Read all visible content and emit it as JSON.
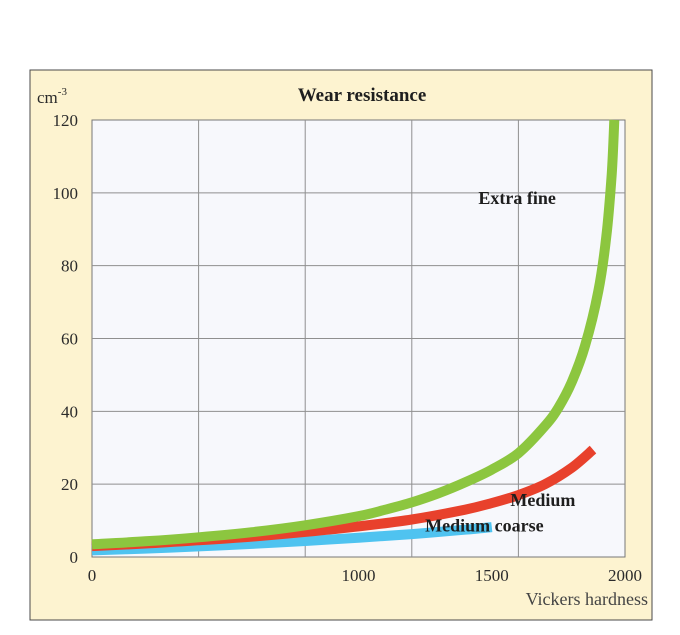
{
  "chart_data": {
    "type": "line",
    "title": "Wear resistance",
    "ylabel": "cm",
    "ylabel_superscript": "-3",
    "xlabel": "Vickers hardness",
    "xlim": [
      0,
      2000
    ],
    "ylim": [
      0,
      120
    ],
    "x_ticks": [
      "0",
      "1000",
      "1500",
      "2000"
    ],
    "x_tick_values": [
      0,
      1000,
      1500,
      2000
    ],
    "y_ticks": [
      "0",
      "20",
      "40",
      "60",
      "80",
      "100",
      "120"
    ],
    "y_tick_values": [
      0,
      20,
      40,
      60,
      80,
      100,
      120
    ],
    "grid_x": [
      0,
      400,
      800,
      1200,
      1600,
      2000
    ],
    "grid": true,
    "series": [
      {
        "name": "Extra fine",
        "color": "#8cc63f",
        "x": [
          0,
          200,
          400,
          600,
          800,
          1000,
          1100,
          1200,
          1300,
          1400,
          1500,
          1600,
          1700,
          1750,
          1800,
          1850,
          1900,
          1930,
          1950,
          1960
        ],
        "y": [
          3.5,
          4.3,
          5.4,
          6.8,
          8.7,
          11.2,
          13,
          15,
          17.5,
          20.5,
          24,
          28.5,
          36,
          41,
          48,
          58,
          73,
          88,
          105,
          120
        ]
      },
      {
        "name": "Medium",
        "color": "#e8412c",
        "x": [
          0,
          200,
          400,
          600,
          800,
          1000,
          1200,
          1400,
          1500,
          1600,
          1700,
          1800,
          1880
        ],
        "y": [
          3,
          3.7,
          4.6,
          5.6,
          6.9,
          8.4,
          10.3,
          13,
          14.8,
          17,
          20,
          24.5,
          29.5
        ]
      },
      {
        "name": "Medium coarse",
        "color": "#4fc3f0",
        "x": [
          0,
          200,
          400,
          600,
          800,
          1000,
          1200,
          1400,
          1500
        ],
        "y": [
          1.8,
          2.3,
          2.9,
          3.6,
          4.4,
          5.3,
          6.3,
          7.5,
          8.2
        ]
      }
    ],
    "annotations": [
      {
        "text": "Extra fine",
        "x": 1450,
        "y": 97
      },
      {
        "text": "Medium",
        "x": 1570,
        "y": 14
      },
      {
        "text": "Medium coarse",
        "x": 1250,
        "y": 7
      }
    ]
  }
}
